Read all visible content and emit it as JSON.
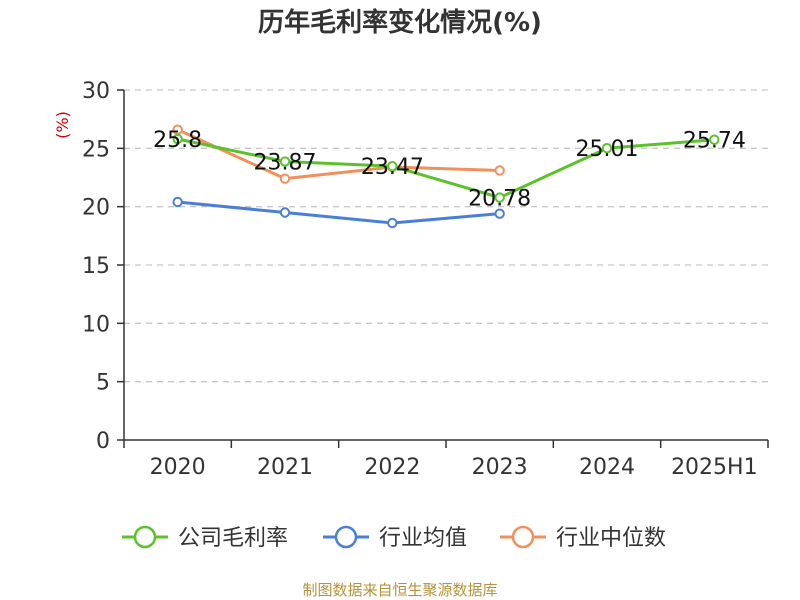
{
  "chart_data": {
    "type": "line",
    "title": "历年毛利率变化情况(%)",
    "ylabel": "(%)",
    "xlabel": "",
    "ylim": [
      0,
      30
    ],
    "y_ticks": [
      0,
      5,
      10,
      15,
      20,
      25,
      30
    ],
    "grid": true,
    "legend_position": "bottom",
    "categories": [
      "2020",
      "2021",
      "2022",
      "2023",
      "2024",
      "2025H1"
    ],
    "series": [
      {
        "name": "公司毛利率",
        "color": "#5cc12a",
        "values": [
          25.8,
          23.87,
          23.47,
          20.78,
          25.01,
          25.74
        ],
        "labels": [
          "25.8",
          "23.87",
          "23.47",
          "20.78",
          "25.01",
          "25.74"
        ]
      },
      {
        "name": "行业均值",
        "color": "#4a7fd8",
        "values": [
          20.4,
          19.5,
          18.6,
          19.4,
          null,
          null
        ]
      },
      {
        "name": "行业中位数",
        "color": "#f0905a",
        "values": [
          26.6,
          22.4,
          23.4,
          23.1,
          null,
          null
        ]
      }
    ],
    "source": "制图数据来自恒生聚源数据库"
  }
}
